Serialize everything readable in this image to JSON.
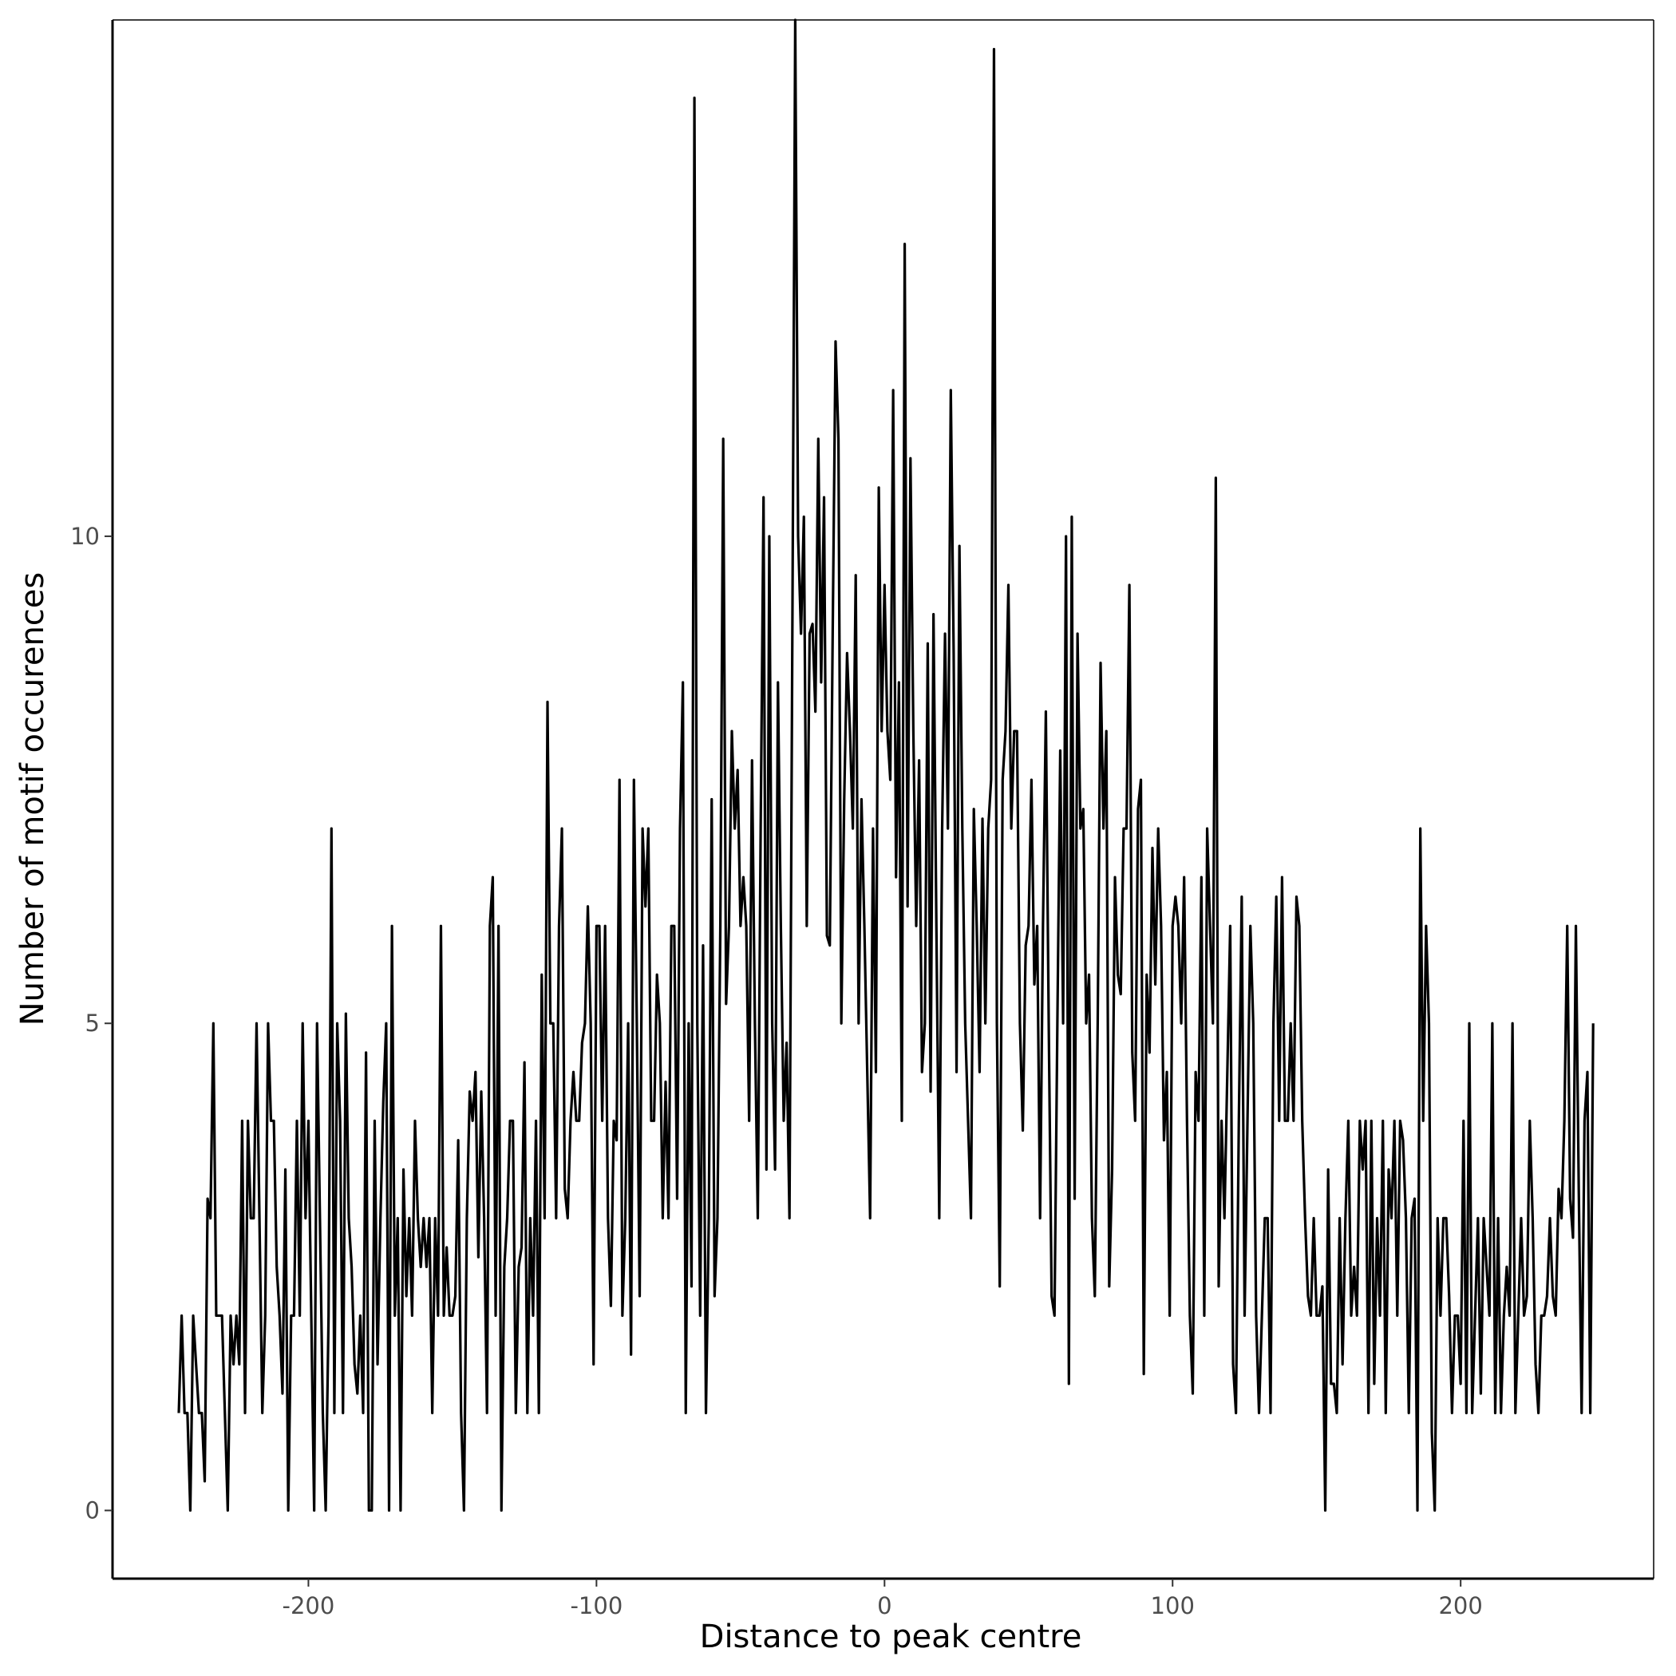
{
  "chart_data": {
    "type": "line",
    "title": "",
    "xlabel": "Distance to peak centre",
    "ylabel": "Number of motif occurences",
    "xlim": [
      -268,
      267
    ],
    "ylim": [
      -0.7,
      15.3
    ],
    "x_ticks": [
      -200,
      -100,
      0,
      100,
      200
    ],
    "x_tick_labels": [
      "-200",
      "-100",
      "0",
      "100",
      "200"
    ],
    "y_ticks": [
      0,
      5,
      10
    ],
    "y_tick_labels": [
      "0",
      "5",
      "10"
    ],
    "grid": false,
    "legend": "none",
    "line_color": "#000000",
    "series": [
      {
        "x_start": -245,
        "x_step": 1,
        "values": [
          1,
          2,
          1,
          1,
          0,
          2,
          1.5,
          1,
          1,
          0.3,
          3.2,
          3,
          5,
          2,
          2,
          2,
          1,
          0,
          2,
          1.5,
          2,
          1.5,
          4,
          1,
          4,
          3,
          3,
          5,
          3,
          1,
          2,
          5,
          4,
          4,
          2.5,
          2,
          1.2,
          3.5,
          0,
          2,
          2,
          4,
          2,
          5,
          3,
          4,
          2,
          0,
          5,
          3,
          1,
          0,
          2,
          7,
          1,
          5,
          4,
          1,
          5.1,
          3,
          2.5,
          1.5,
          1.2,
          2,
          1,
          4.7,
          0,
          0,
          4,
          1.5,
          3,
          4.2,
          5,
          0,
          6,
          2,
          3,
          0,
          3.5,
          2.2,
          3,
          2,
          4,
          3,
          2.5,
          3,
          2.5,
          3,
          1,
          3,
          2,
          6,
          2,
          2.7,
          2,
          2,
          2.2,
          3.8,
          1,
          0,
          3,
          4.3,
          4,
          4.5,
          2.6,
          4.3,
          3,
          1,
          6,
          6.5,
          2,
          6,
          0,
          2.5,
          3,
          4,
          4,
          1,
          2.5,
          2.7,
          4.6,
          1,
          3,
          2,
          4,
          1,
          5.5,
          3,
          8.3,
          5,
          5,
          3,
          6,
          7,
          3.3,
          3,
          4,
          4.5,
          4,
          4,
          4.8,
          5,
          6.2,
          5,
          1.5,
          6,
          6,
          4,
          6,
          3,
          2.1,
          4,
          3.8,
          7.5,
          2,
          3,
          5,
          1.6,
          7.5,
          5,
          2.2,
          7,
          6.2,
          7,
          4,
          4,
          5.5,
          5,
          3,
          4.4,
          3,
          6,
          6,
          3.2,
          7,
          8.5,
          1,
          5,
          2.3,
          14.5,
          5,
          2,
          5.8,
          1,
          3,
          7.3,
          2.2,
          3,
          6,
          11,
          5.2,
          6,
          8,
          7,
          7.6,
          6,
          6.5,
          6,
          4,
          7.7,
          5,
          3,
          7,
          10.4,
          3.5,
          10,
          5,
          3.5,
          8.5,
          6,
          4,
          4.8,
          3,
          9,
          15.3,
          10,
          9,
          10.2,
          6,
          9,
          9.1,
          8.2,
          11,
          8.5,
          10.4,
          5.9,
          5.8,
          9,
          12,
          11,
          5,
          7.3,
          8.8,
          8,
          7,
          9.6,
          5,
          7.3,
          6,
          4.5,
          3,
          7,
          4.5,
          10.5,
          8,
          9.5,
          8,
          7.5,
          11.5,
          6.5,
          8.5,
          4,
          13,
          6.2,
          10.8,
          8,
          6,
          7.7,
          4.5,
          5,
          8.9,
          4.3,
          9.2,
          6,
          3,
          7,
          9,
          7,
          11.5,
          8.8,
          4.5,
          9.9,
          7,
          5,
          4,
          3,
          7.2,
          6,
          4.5,
          7.1,
          5,
          7,
          7.5,
          15,
          5,
          2.3,
          7.5,
          8,
          9.5,
          7,
          8,
          8,
          5,
          3.9,
          5.8,
          6,
          7.5,
          5.4,
          6,
          3,
          6,
          8.2,
          5,
          2.2,
          2,
          5,
          7.8,
          5,
          10,
          1.3,
          10.2,
          3.2,
          9,
          7,
          7.2,
          5,
          5.5,
          3,
          2.2,
          5,
          8.7,
          7,
          8,
          2.3,
          3.5,
          6.5,
          5.5,
          5.3,
          7,
          7,
          9.5,
          4.7,
          4,
          7.2,
          7.5,
          1.4,
          5.5,
          4.7,
          6.8,
          5.4,
          7,
          6,
          3.8,
          4.5,
          2,
          6,
          6.3,
          6,
          5,
          6.5,
          4,
          2,
          1.2,
          4.5,
          4,
          6.5,
          2,
          7,
          6,
          5,
          10.6,
          2.3,
          4,
          3,
          4.5,
          6,
          1.5,
          1,
          4,
          6.3,
          2,
          4,
          6,
          5,
          2,
          1,
          2,
          3,
          3,
          1,
          5,
          6.3,
          4,
          6.5,
          4,
          4,
          5,
          4,
          6.3,
          6,
          4,
          3,
          2.2,
          2,
          3,
          2,
          2,
          2.3,
          0,
          3.5,
          1.3,
          1.3,
          1,
          3,
          1.5,
          3,
          4,
          2,
          2.5,
          2,
          4,
          3.5,
          4,
          1,
          4,
          1.3,
          3,
          2,
          4,
          1,
          3.5,
          3,
          4,
          2,
          4,
          3.8,
          3,
          1,
          3,
          3.2,
          0,
          7,
          4,
          6,
          5,
          0.8,
          0,
          3,
          2,
          3,
          3,
          2.2,
          1,
          2,
          2,
          1.3,
          4,
          1,
          5,
          1,
          2,
          3,
          1.2,
          3,
          2.5,
          2,
          5,
          1,
          3,
          1,
          2,
          2.5,
          2,
          5,
          1,
          2,
          3,
          2,
          2.2,
          4,
          3,
          1.5,
          1,
          2,
          2,
          2.2,
          3,
          2.2,
          2,
          3.3,
          3,
          4,
          6,
          3.2,
          2.8,
          6,
          3.3,
          1,
          4,
          4.5,
          1,
          5
        ]
      }
    ]
  }
}
